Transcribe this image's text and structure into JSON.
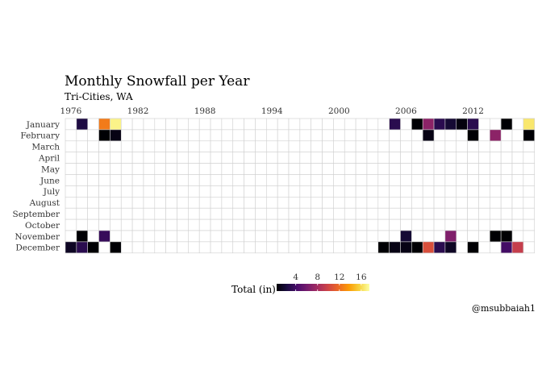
{
  "chart_data": {
    "type": "heatmap",
    "title": "Monthly Snowfall per Year",
    "subtitle": "Tri-Cities, WA",
    "x": [
      1976,
      1977,
      1978,
      1979,
      1980,
      1981,
      1982,
      1983,
      1984,
      1985,
      1986,
      1987,
      1988,
      1989,
      1990,
      1991,
      1992,
      1993,
      1994,
      1995,
      1996,
      1997,
      1998,
      1999,
      2000,
      2001,
      2002,
      2003,
      2004,
      2005,
      2006,
      2007,
      2008,
      2009,
      2010,
      2011,
      2012,
      2013,
      2014,
      2015,
      2016,
      2017
    ],
    "x_ticks": [
      1976,
      1982,
      1988,
      1994,
      2000,
      2006,
      2012
    ],
    "y": [
      "January",
      "February",
      "March",
      "April",
      "May",
      "June",
      "July",
      "August",
      "September",
      "October",
      "November",
      "December"
    ],
    "legend": {
      "title": "Total (in)",
      "ticks": [
        4,
        8,
        12,
        16
      ],
      "range": [
        0.5,
        17.5
      ]
    },
    "cells": [
      {
        "year": 1977,
        "month": "January",
        "value": 2.5
      },
      {
        "year": 1979,
        "month": "January",
        "value": 12.5
      },
      {
        "year": 1980,
        "month": "January",
        "value": 17
      },
      {
        "year": 1979,
        "month": "February",
        "value": 0.3
      },
      {
        "year": 1980,
        "month": "February",
        "value": 1
      },
      {
        "year": 1977,
        "month": "November",
        "value": 0.3
      },
      {
        "year": 1979,
        "month": "November",
        "value": 3.5
      },
      {
        "year": 1976,
        "month": "December",
        "value": 1.5
      },
      {
        "year": 1977,
        "month": "December",
        "value": 3
      },
      {
        "year": 1978,
        "month": "December",
        "value": 0.3
      },
      {
        "year": 1980,
        "month": "December",
        "value": 0.3
      },
      {
        "year": 2005,
        "month": "January",
        "value": 3
      },
      {
        "year": 2007,
        "month": "January",
        "value": 0.3
      },
      {
        "year": 2008,
        "month": "January",
        "value": 7
      },
      {
        "year": 2009,
        "month": "January",
        "value": 3
      },
      {
        "year": 2010,
        "month": "January",
        "value": 2
      },
      {
        "year": 2011,
        "month": "January",
        "value": 0.8
      },
      {
        "year": 2012,
        "month": "January",
        "value": 3
      },
      {
        "year": 2015,
        "month": "January",
        "value": 0.3
      },
      {
        "year": 2017,
        "month": "January",
        "value": 16.5
      },
      {
        "year": 2008,
        "month": "February",
        "value": 1
      },
      {
        "year": 2012,
        "month": "February",
        "value": 0.5
      },
      {
        "year": 2014,
        "month": "February",
        "value": 7
      },
      {
        "year": 2017,
        "month": "February",
        "value": 0.3
      },
      {
        "year": 2006,
        "month": "November",
        "value": 2
      },
      {
        "year": 2010,
        "month": "November",
        "value": 6.5
      },
      {
        "year": 2014,
        "month": "November",
        "value": 0.3
      },
      {
        "year": 2015,
        "month": "November",
        "value": 0.3
      },
      {
        "year": 2004,
        "month": "December",
        "value": 0.5
      },
      {
        "year": 2005,
        "month": "December",
        "value": 1
      },
      {
        "year": 2006,
        "month": "December",
        "value": 1
      },
      {
        "year": 2007,
        "month": "December",
        "value": 0.5
      },
      {
        "year": 2008,
        "month": "December",
        "value": 10.5
      },
      {
        "year": 2009,
        "month": "December",
        "value": 3
      },
      {
        "year": 2010,
        "month": "December",
        "value": 1.5
      },
      {
        "year": 2012,
        "month": "December",
        "value": 0.5
      },
      {
        "year": 2015,
        "month": "December",
        "value": 4
      },
      {
        "year": 2016,
        "month": "December",
        "value": 9.5
      }
    ]
  },
  "credit": "@msubbaiah1",
  "colors": {
    "grid_stroke": "#cfcfcf",
    "palette": [
      "#000004",
      "#1b0c41",
      "#4a0c6b",
      "#781c6d",
      "#a52c60",
      "#cf4446",
      "#ed6925",
      "#fb9b06",
      "#f7d13d",
      "#fcffa4"
    ]
  }
}
